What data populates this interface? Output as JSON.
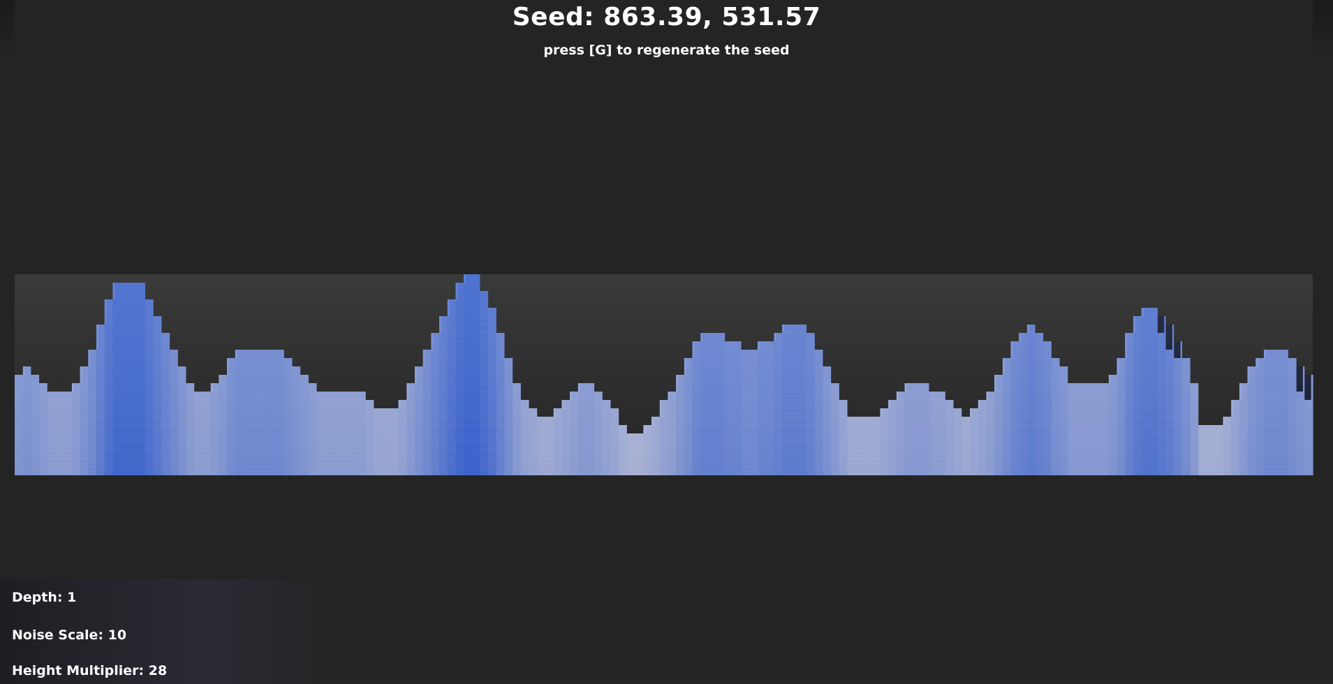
{
  "header": {
    "seed_label": "Seed: 863.39, 531.57",
    "hint": "press [G] to regenerate the seed"
  },
  "stats": {
    "depth": "Depth: 1",
    "noise_scale": "Noise Scale: 10",
    "height_multiplier": "Height Multiplier: 28"
  },
  "terrain": {
    "column_heights": [
      12,
      13,
      12,
      11,
      10,
      10,
      10,
      11,
      13,
      15,
      18,
      21,
      23,
      23,
      23,
      23,
      21,
      19,
      17,
      15,
      13,
      11,
      10,
      10,
      11,
      12,
      14,
      15,
      15,
      15,
      15,
      15,
      15,
      14,
      13,
      12,
      11,
      10,
      10,
      10,
      10,
      10,
      10,
      9,
      8,
      8,
      8,
      9,
      11,
      13,
      15,
      17,
      19,
      21,
      23,
      24,
      24,
      22,
      20,
      17,
      14,
      11,
      9,
      8,
      7,
      7,
      8,
      9,
      10,
      11,
      11,
      10,
      9,
      8,
      6,
      5,
      5,
      6,
      7,
      9,
      10,
      12,
      14,
      16,
      17,
      17,
      17,
      16,
      16,
      15,
      15,
      16,
      16,
      17,
      18,
      18,
      18,
      17,
      15,
      13,
      11,
      9,
      7,
      7,
      7,
      7,
      8,
      9,
      10,
      11,
      11,
      11,
      10,
      10,
      9,
      8,
      7,
      8,
      9,
      10,
      12,
      14,
      16,
      17,
      18,
      17,
      16,
      14,
      13,
      11,
      11,
      11,
      11,
      11,
      12,
      14,
      17,
      19,
      20,
      20,
      19,
      18,
      16,
      14,
      11,
      6,
      6,
      6,
      7,
      9,
      11,
      13,
      14,
      15,
      15,
      15,
      14,
      13,
      12
    ],
    "colors": {
      "low": "#a7b0d2",
      "high": "#3b63cb",
      "shadow": "#141b33",
      "background": "#242424"
    }
  }
}
